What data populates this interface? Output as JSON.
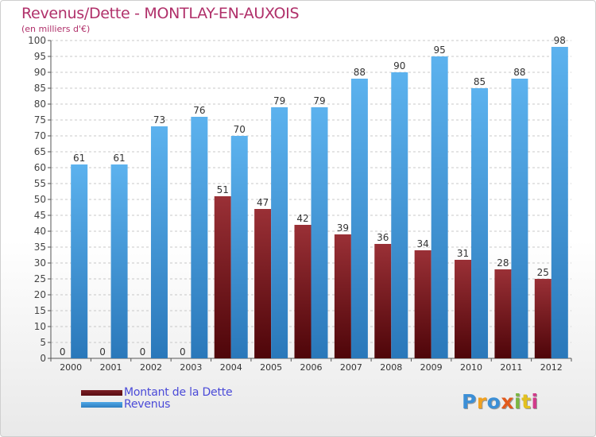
{
  "title": "Revenus/Dette - MONTLAY-EN-AUXOIS",
  "subtitle": "(en milliers d'€)",
  "logo": {
    "text": "Proxiti",
    "colors": [
      "#3c8fd6",
      "#f0a020",
      "#3c8fd6",
      "#e25a1c",
      "#7ab640",
      "#e2c020",
      "#d03a8a"
    ]
  },
  "colors": {
    "dette": "#7a1e24",
    "revenus": "#4ea6e6",
    "title": "#b0306a",
    "legend_text": "#4a4ad8",
    "grid": "#c8c8c8"
  },
  "chart_data": {
    "type": "bar",
    "title": "Revenus/Dette - MONTLAY-EN-AUXOIS",
    "subtitle": "(en milliers d'€)",
    "categories": [
      "2000",
      "2001",
      "2002",
      "2003",
      "2004",
      "2005",
      "2006",
      "2007",
      "2008",
      "2009",
      "2010",
      "2011",
      "2012"
    ],
    "series": [
      {
        "name": "Montant de la Dette",
        "values": [
          0,
          0,
          0,
          0,
          51,
          47,
          42,
          39,
          36,
          34,
          31,
          28,
          25
        ]
      },
      {
        "name": "Revenus",
        "values": [
          61,
          61,
          73,
          76,
          70,
          79,
          79,
          88,
          90,
          95,
          85,
          88,
          98
        ]
      }
    ],
    "ylim": [
      0,
      100
    ],
    "ytick_step": 5,
    "grid": true,
    "legend_position": "bottom-left"
  }
}
